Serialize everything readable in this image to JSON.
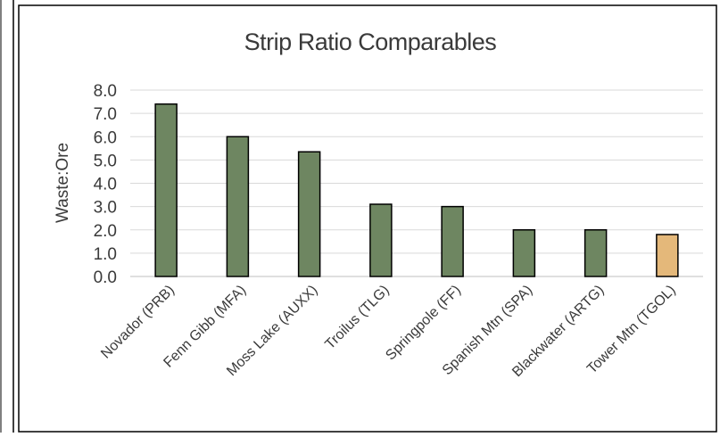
{
  "chart_data": {
    "type": "bar",
    "title": "Strip Ratio Comparables",
    "ylabel": "Waste:Ore",
    "xlabel": "",
    "ylim": [
      0,
      8
    ],
    "yticks": [
      "0.0",
      "1.0",
      "2.0",
      "3.0",
      "4.0",
      "5.0",
      "6.0",
      "7.0",
      "8.0"
    ],
    "grid": true,
    "legend": "none",
    "categories": [
      "Novador (PRB)",
      "Fenn Gibb (MFA)",
      "Moss Lake (AUXX)",
      "Troilus (TLG)",
      "Springpole (FF)",
      "Spanish Mtn (SPA)",
      "Blackwater (ARTG)",
      "Tower Mtn (TGOL)"
    ],
    "values": [
      7.4,
      6.0,
      5.35,
      3.1,
      3.0,
      2.0,
      2.0,
      1.8
    ],
    "colors": [
      "#6e8661",
      "#6e8661",
      "#6e8661",
      "#6e8661",
      "#6e8661",
      "#6e8661",
      "#6e8661",
      "#e4b87a"
    ],
    "bar_border_color": "#000000"
  }
}
